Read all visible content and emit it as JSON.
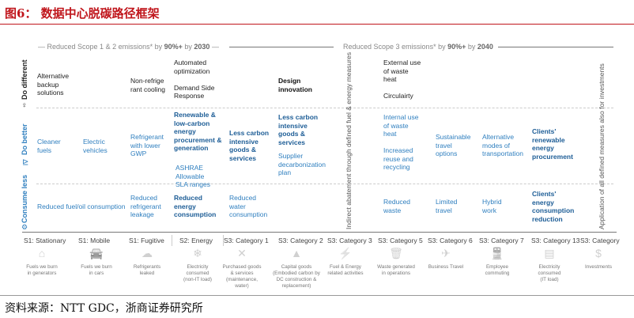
{
  "title": "图6： 数据中心脱碳路径框架",
  "source": "资料来源：NTT GDC，浙商证券研究所",
  "banners": {
    "scope12": {
      "pre": "Reduced Scope 1 & 2 emissions* by ",
      "b1": "90%+",
      "mid": " by ",
      "b2": "2030"
    },
    "scope3": {
      "pre": "Reduced Scope 3 emissions* by ",
      "b1": "90%+",
      "mid": " by ",
      "b2": "2040"
    }
  },
  "rows": {
    "do_different": "Do different",
    "do_better": "Do better",
    "consume_less": "Consume less"
  },
  "vertical_notes": {
    "indirect": "Indirect abatement through defined fuel & energy measures",
    "application": "Application of all defined measures also for investments"
  },
  "cells": [
    [
      "Alternative\nbackup\nsolutions",
      "k"
    ],
    [
      "Non-refrige\nrant cooling",
      "k"
    ],
    [
      "Automated\noptimization\n\nDemand Side\nResponse",
      "k"
    ],
    [
      "Design\ninnovation",
      "kb"
    ],
    [
      "External use\nof waste\nheat\n\nCirculairty",
      "k"
    ],
    [
      "Cleaner\nfuels",
      "b"
    ],
    [
      "Electric\nvehicles",
      "b"
    ],
    [
      "Refrigerant\nwith lower\nGWP",
      "b"
    ],
    [
      "Renewable &\nlow-carbon\nenergy\nprocurement &\ngeneration",
      "bb"
    ],
    [
      "ASHRAE\nAllowable\nSLA ranges",
      "b"
    ],
    [
      "Less carbon\nintensive\ngoods &\nservices",
      "bb"
    ],
    [
      "Less carbon\nintensive\ngoods &\nservices",
      "bb"
    ],
    [
      "Supplier\ndecarbonization\nplan",
      "b"
    ],
    [
      "Internal use\nof waste\nheat\n\nIncreased\nreuse and\nrecycling",
      "b"
    ],
    [
      "Sustainable\ntravel\noptions",
      "b"
    ],
    [
      "Alternative\nmodes of\ntransportation",
      "b"
    ],
    [
      "Clients'\nrenewable\nenergy\nprocurement",
      "bb"
    ],
    [
      "Reduced fuel/oil consumption",
      "b"
    ],
    [
      "Reduced\nrefrigerant\nleakage",
      "b"
    ],
    [
      "Reduced\nenergy\nconsumption",
      "bb"
    ],
    [
      "Reduced\nwater\nconsumption",
      "b"
    ],
    [
      "Reduced\nwaste",
      "b"
    ],
    [
      "Limited\ntravel",
      "b"
    ],
    [
      "Hybrid\nwork",
      "b"
    ],
    [
      "Clients'\nenergy\nconsumption\nreduction",
      "bb"
    ]
  ],
  "categories": [
    {
      "label": "S1: Stationary",
      "icon": "factory-icon",
      "glyph": "⌂",
      "desc": "Fuels we burn\nin generators"
    },
    {
      "label": "S1: Mobile",
      "icon": "car-icon",
      "glyph": "🚘",
      "desc": "Fuels we burn\nin cars"
    },
    {
      "label": "S1: Fugitive",
      "icon": "cloud-icon",
      "glyph": "☁",
      "desc": "Refrigerants\nleaked"
    },
    {
      "label": "S2: Energy",
      "icon": "snowflake-icon",
      "glyph": "❄",
      "desc": "Electricity\nconsumed\n(non-IT load)"
    },
    {
      "label": "S3: Category 1",
      "icon": "tools-icon",
      "glyph": "✕",
      "desc": "Purchased goods\n& services\n(maintenance,\nwater)"
    },
    {
      "label": "S3: Category 2",
      "icon": "cone-icon",
      "glyph": "▲",
      "desc": "Capital goods\n(Embodied carbon by\nDC construction &\nreplacement)"
    },
    {
      "label": "S3: Category 3",
      "icon": "pylon-icon",
      "glyph": "⚡",
      "desc": "Fuel & Energy\nrelated activities"
    },
    {
      "label": "S3: Category 5",
      "icon": "trash-icon",
      "glyph": "🗑",
      "desc": "Waste generated\nin operations"
    },
    {
      "label": "S3: Category 6",
      "icon": "airplane-icon",
      "glyph": "✈",
      "desc": "Business Travel"
    },
    {
      "label": "S3: Category 7",
      "icon": "train-icon",
      "glyph": "🚆",
      "desc": "Employee\ncommuting"
    },
    {
      "label": "S3: Category 13",
      "icon": "server-icon",
      "glyph": "▤",
      "desc": "Electricity\nconsumed\n(IT load)"
    },
    {
      "label": "S3: Category",
      "icon": "dollar-icon",
      "glyph": "$",
      "desc": "Investments"
    }
  ]
}
